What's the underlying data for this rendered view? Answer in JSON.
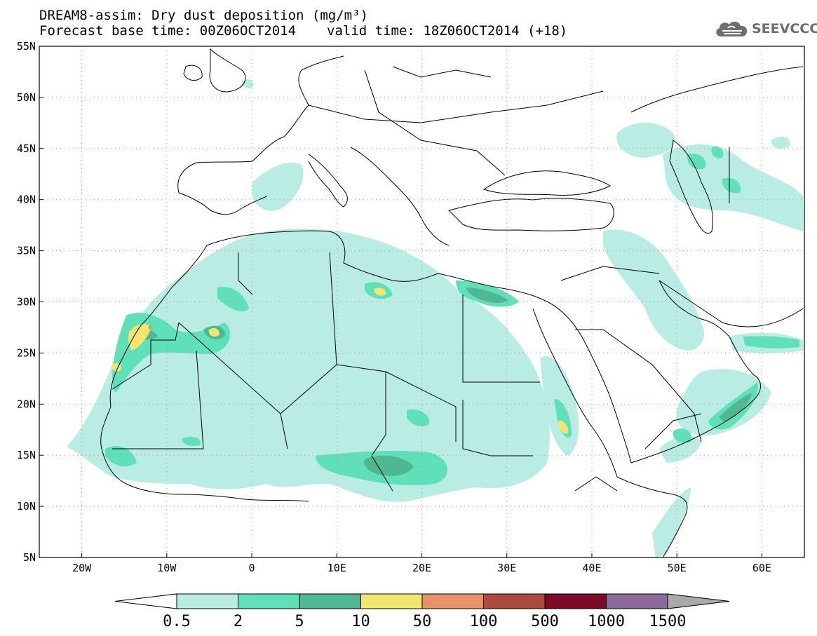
{
  "header": {
    "title": "DREAM8-assim: Dry dust deposition (mg/m³)",
    "base_time": "Forecast base time: 00Z06OCT2014",
    "valid_time": "valid time: 18Z06OCT2014 (+18)"
  },
  "logo": {
    "text": "SEEVCCC",
    "icon": "cloud-logo-icon"
  },
  "map": {
    "lon_range": [
      -25,
      65
    ],
    "lat_range": [
      5,
      55
    ],
    "lon_ticks": [
      {
        "value": -20,
        "label": "20W"
      },
      {
        "value": -10,
        "label": "10W"
      },
      {
        "value": 0,
        "label": "0"
      },
      {
        "value": 10,
        "label": "10E"
      },
      {
        "value": 20,
        "label": "20E"
      },
      {
        "value": 30,
        "label": "30E"
      },
      {
        "value": 40,
        "label": "40E"
      },
      {
        "value": 50,
        "label": "50E"
      },
      {
        "value": 60,
        "label": "60E"
      }
    ],
    "lat_ticks": [
      {
        "value": 55,
        "label": "55N"
      },
      {
        "value": 50,
        "label": "50N"
      },
      {
        "value": 45,
        "label": "45N"
      },
      {
        "value": 40,
        "label": "40N"
      },
      {
        "value": 35,
        "label": "35N"
      },
      {
        "value": 30,
        "label": "30N"
      },
      {
        "value": 25,
        "label": "25N"
      },
      {
        "value": 20,
        "label": "20N"
      },
      {
        "value": 15,
        "label": "15N"
      },
      {
        "value": 10,
        "label": "10N"
      },
      {
        "value": 5,
        "label": "5N"
      }
    ],
    "grid": "dotted"
  },
  "legend": {
    "bins": [
      {
        "color": "#b9ede4"
      },
      {
        "color": "#5fe0b8"
      },
      {
        "color": "#4fb893"
      },
      {
        "color": "#f2e66f"
      },
      {
        "color": "#e8906a"
      },
      {
        "color": "#ad4a3d"
      },
      {
        "color": "#7e0a2a"
      },
      {
        "color": "#8d6a9e"
      }
    ],
    "under_color": "#ffffff",
    "over_color": "#a9a9a9",
    "labels": [
      "0.5",
      "2",
      "5",
      "10",
      "50",
      "100",
      "500",
      "1000",
      "1500"
    ]
  }
}
